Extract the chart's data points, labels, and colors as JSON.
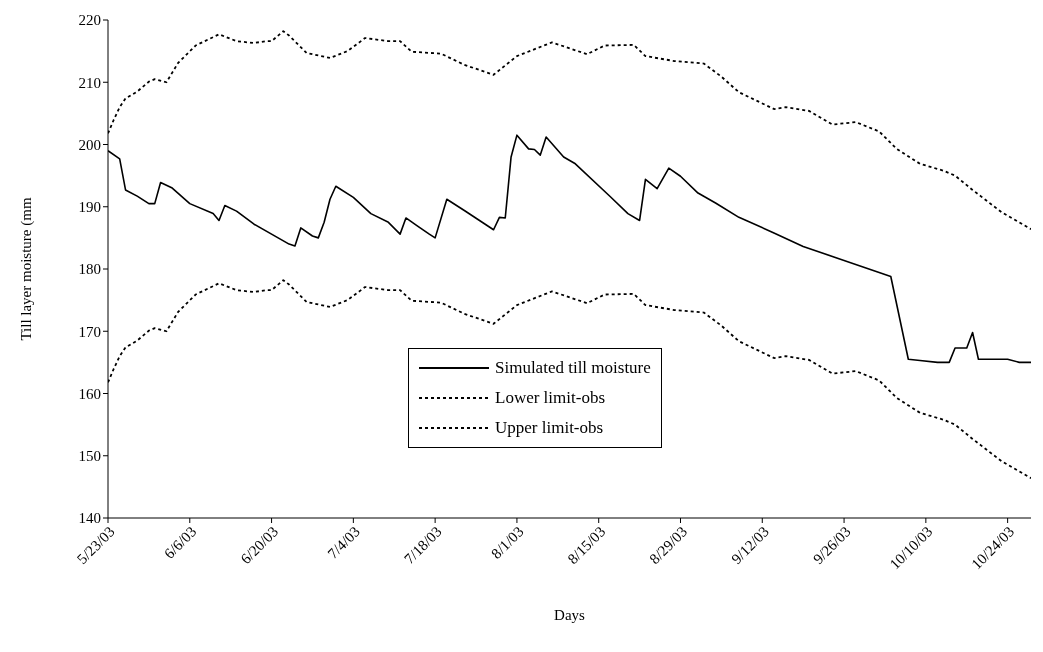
{
  "chart_data": {
    "type": "line",
    "xlabel": "Days",
    "ylabel": "Till layer moisture (mm",
    "xlim": [
      "--05-23",
      "--10-28"
    ],
    "ylim": [
      140,
      220
    ],
    "yticks": [
      140,
      150,
      160,
      170,
      180,
      190,
      200,
      210,
      220
    ],
    "xticks": [
      {
        "value": "--05-23",
        "label": "5/23/03"
      },
      {
        "value": "--06-06",
        "label": "6/6/03"
      },
      {
        "value": "--06-20",
        "label": "6/20/03"
      },
      {
        "value": "--07-04",
        "label": "7/4/03"
      },
      {
        "value": "--07-18",
        "label": "7/18/03"
      },
      {
        "value": "--08-01",
        "label": "8/1/03"
      },
      {
        "value": "--08-15",
        "label": "8/15/03"
      },
      {
        "value": "--08-29",
        "label": "8/29/03"
      },
      {
        "value": "--09-12",
        "label": "9/12/03"
      },
      {
        "value": "--09-26",
        "label": "9/26/03"
      },
      {
        "value": "--10-10",
        "label": "10/10/03"
      },
      {
        "value": "--10-24",
        "label": "10/24/03"
      }
    ],
    "legend": "bottom",
    "marker": "none",
    "series": [
      {
        "name": "Simulated till moisture",
        "color": "#000000",
        "line_style": "solid",
        "x": [
          "--05-23",
          "--05-25",
          "--05-26",
          "--05-28",
          "--05-30",
          "--05-31",
          "--06-01",
          "--06-03",
          "--06-06",
          "--06-10",
          "--06-11",
          "--06-12",
          "--06-14",
          "--06-17",
          "--06-23",
          "--06-24",
          "--06-25",
          "--06-27",
          "--06-28",
          "--06-29",
          "--06-30",
          "--07-01",
          "--07-04",
          "--07-07",
          "--07-10",
          "--07-12",
          "--07-13",
          "--07-15",
          "--07-17",
          "--07-18",
          "--07-20",
          "--07-23",
          "--07-28",
          "--07-29",
          "--07-30",
          "--07-31",
          "--08-01",
          "--08-03",
          "--08-04",
          "--08-05",
          "--08-06",
          "--08-09",
          "--08-11",
          "--08-17",
          "--08-20",
          "--08-22",
          "--08-23",
          "--08-25",
          "--08-27",
          "--08-29",
          "--09-01",
          "--09-04",
          "--09-08",
          "--09-14",
          "--09-19",
          "--09-25",
          "--10-04",
          "--10-07",
          "--10-09",
          "--10-12",
          "--10-14",
          "--10-15",
          "--10-17",
          "--10-18",
          "--10-19",
          "--10-24",
          "--10-26",
          "--10-28"
        ],
        "values": [
          199.0,
          197.7,
          192.7,
          191.7,
          190.5,
          190.5,
          193.9,
          193.0,
          190.5,
          188.9,
          187.8,
          190.2,
          189.3,
          187.2,
          184.0,
          183.7,
          186.6,
          185.3,
          185.0,
          187.5,
          191.2,
          193.3,
          191.5,
          188.9,
          187.5,
          185.6,
          188.2,
          186.9,
          185.6,
          185.0,
          191.2,
          189.4,
          186.3,
          188.3,
          188.2,
          198.0,
          201.5,
          199.3,
          199.2,
          198.3,
          201.2,
          198.0,
          196.9,
          191.6,
          188.9,
          187.8,
          194.4,
          192.9,
          196.2,
          194.9,
          192.2,
          190.6,
          188.3,
          185.8,
          183.6,
          181.7,
          178.8,
          165.5,
          165.3,
          165.0,
          165.0,
          167.3,
          167.3,
          169.8,
          165.5,
          165.5,
          165.0,
          165.0
        ]
      },
      {
        "name": "Lower limit-obs",
        "color": "#000000",
        "line_style": "dotted",
        "x": [
          "--05-23",
          "--05-24",
          "--05-25",
          "--05-26",
          "--05-28",
          "--05-30",
          "--05-31",
          "--06-02",
          "--06-04",
          "--06-07",
          "--06-11",
          "--06-14",
          "--06-17",
          "--06-19",
          "--06-20",
          "--06-22",
          "--06-23",
          "--06-26",
          "--06-30",
          "--07-03",
          "--07-06",
          "--07-10",
          "--07-12",
          "--07-14",
          "--07-19",
          "--07-23",
          "--07-28",
          "--08-01",
          "--08-07",
          "--08-13",
          "--08-16",
          "--08-21",
          "--08-23",
          "--08-28",
          "--09-02",
          "--09-05",
          "--09-08",
          "--09-14",
          "--09-16",
          "--09-20",
          "--09-24",
          "--09-28",
          "--10-02",
          "--10-05",
          "--10-09",
          "--10-13",
          "--10-15",
          "--10-18",
          "--10-23",
          "--10-28"
        ],
        "values": [
          161.8,
          164.0,
          166.0,
          167.4,
          168.5,
          170.1,
          170.5,
          170.0,
          173.1,
          175.9,
          177.7,
          176.6,
          176.3,
          176.6,
          176.6,
          178.2,
          177.5,
          174.7,
          173.9,
          175.0,
          177.1,
          176.6,
          176.6,
          174.9,
          174.6,
          172.8,
          171.2,
          174.2,
          176.4,
          174.5,
          175.9,
          176.0,
          174.2,
          173.4,
          173.0,
          170.9,
          168.4,
          165.7,
          166.0,
          165.4,
          163.2,
          163.6,
          162.1,
          159.3,
          156.9,
          155.8,
          155.0,
          152.7,
          149.1,
          146.4
        ]
      },
      {
        "name": "Upper limit-obs",
        "color": "#000000",
        "line_style": "dotted",
        "x": [
          "--05-23",
          "--05-24",
          "--05-25",
          "--05-26",
          "--05-28",
          "--05-30",
          "--05-31",
          "--06-02",
          "--06-04",
          "--06-07",
          "--06-11",
          "--06-14",
          "--06-17",
          "--06-19",
          "--06-20",
          "--06-22",
          "--06-23",
          "--06-26",
          "--06-30",
          "--07-03",
          "--07-06",
          "--07-10",
          "--07-12",
          "--07-14",
          "--07-19",
          "--07-23",
          "--07-28",
          "--08-01",
          "--08-07",
          "--08-13",
          "--08-16",
          "--08-21",
          "--08-23",
          "--08-28",
          "--09-02",
          "--09-05",
          "--09-08",
          "--09-14",
          "--09-16",
          "--09-20",
          "--09-24",
          "--09-28",
          "--10-02",
          "--10-05",
          "--10-09",
          "--10-13",
          "--10-15",
          "--10-18",
          "--10-23",
          "--10-28"
        ],
        "values": [
          201.8,
          204.0,
          206.0,
          207.4,
          208.5,
          210.1,
          210.5,
          210.0,
          213.1,
          215.9,
          217.7,
          216.6,
          216.3,
          216.6,
          216.6,
          218.2,
          217.5,
          214.7,
          213.9,
          215.0,
          217.1,
          216.6,
          216.6,
          214.9,
          214.6,
          212.8,
          211.2,
          214.2,
          216.4,
          214.5,
          215.9,
          216.0,
          214.2,
          213.4,
          213.0,
          210.9,
          208.4,
          205.7,
          206.0,
          205.4,
          203.2,
          203.6,
          202.1,
          199.3,
          196.9,
          195.8,
          195.0,
          192.7,
          189.1,
          186.4
        ]
      }
    ]
  }
}
